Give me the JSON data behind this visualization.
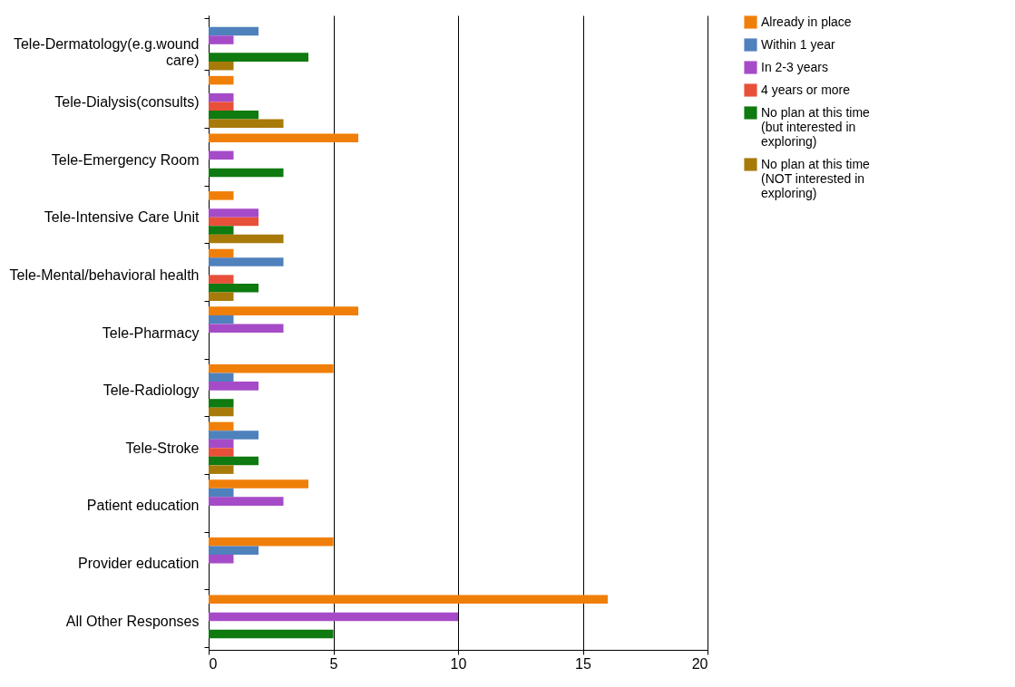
{
  "chart_data": {
    "type": "bar",
    "orientation": "horizontal",
    "categories": [
      "Tele-Dermatology(e.g.wound care)",
      "Tele-Dialysis(consults)",
      "Tele-Emergency Room",
      "Tele-Intensive Care Unit",
      "Tele-Mental/behavioral health",
      "Tele-Pharmacy",
      "Tele-Radiology",
      "Tele-Stroke",
      "Patient education",
      "Provider education",
      "All Other Responses"
    ],
    "series": [
      {
        "name": "Already in place",
        "color": "#f07f09",
        "values": [
          0,
          1,
          6,
          1,
          1,
          6,
          5,
          1,
          4,
          5,
          16
        ]
      },
      {
        "name": "Within 1 year",
        "color": "#4f81bd",
        "values": [
          2,
          0,
          0,
          0,
          3,
          1,
          1,
          2,
          1,
          2,
          0
        ]
      },
      {
        "name": "In 2-3 years",
        "color": "#a64bc8",
        "values": [
          1,
          1,
          1,
          2,
          0,
          3,
          2,
          1,
          3,
          1,
          10
        ]
      },
      {
        "name": "4 years or more",
        "color": "#e8503a",
        "values": [
          0,
          1,
          0,
          2,
          1,
          0,
          0,
          1,
          0,
          0,
          0
        ]
      },
      {
        "name": "No plan at this time (but interested in exploring)",
        "color": "#0f7a0f",
        "values": [
          4,
          2,
          3,
          1,
          2,
          0,
          1,
          2,
          0,
          0,
          5
        ]
      },
      {
        "name": "No plan at this time (NOT interested in exploring)",
        "color": "#a87a0a",
        "values": [
          1,
          3,
          0,
          3,
          1,
          0,
          1,
          1,
          0,
          0,
          0
        ]
      }
    ],
    "xlim": [
      0,
      20
    ],
    "xticks": [
      0,
      5,
      10,
      15,
      20
    ],
    "grid": "x",
    "legend": "right"
  }
}
